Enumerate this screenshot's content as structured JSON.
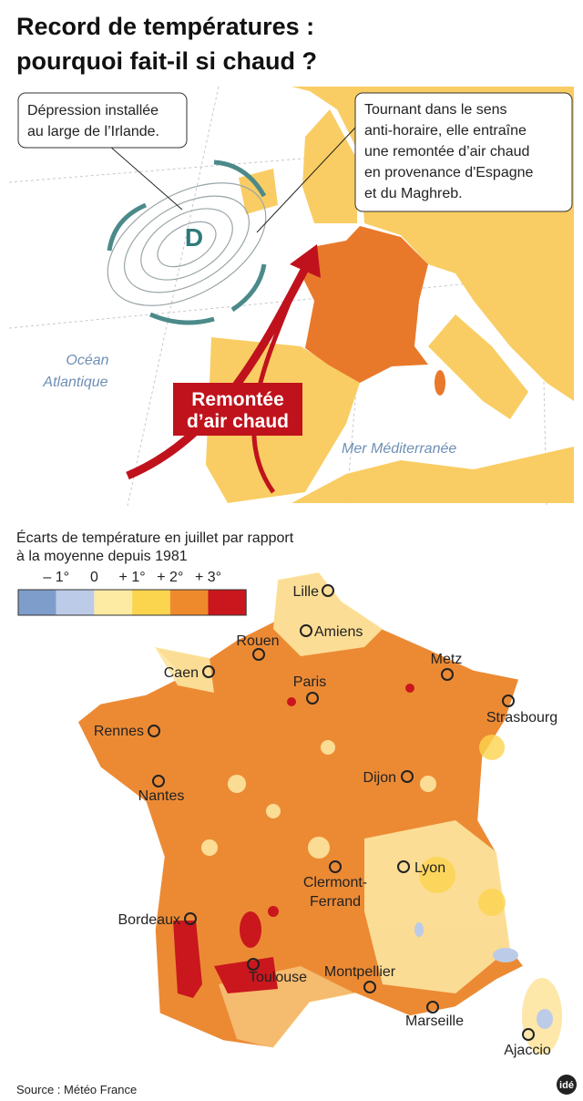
{
  "header": {
    "title": [
      "Record de températures :",
      "pourquoi fait-il si chaud ?"
    ]
  },
  "map_europe": {
    "callout_left": [
      "Dépression installée",
      "au large de l’Irlande."
    ],
    "callout_right": [
      "Tournant dans le sens",
      "anti-horaire, elle entraîne",
      "une remontée d’air chaud",
      "en provenance d'Espagne",
      "et du Maghreb."
    ],
    "depression_label": "D",
    "ocean_label": [
      "Océan",
      "Atlantique"
    ],
    "arrow_label": [
      "Remontée",
      "d’air chaud"
    ],
    "sea_label": "Mer Méditerranée"
  },
  "legend": {
    "title": [
      "Écarts de température en juillet par rapport",
      "à la moyenne depuis 1981"
    ],
    "labels": [
      "– 1°",
      "0",
      "+ 1°",
      "+ 2°",
      "+ 3°"
    ],
    "colors": [
      "#7f9dca",
      "#bccbe7",
      "#fdeaa3",
      "#fcd54e",
      "#ef8a2c",
      "#c9171d"
    ]
  },
  "map_france": {
    "cities": [
      "Lille",
      "Amiens",
      "Rouen",
      "Metz",
      "Caen",
      "Paris",
      "Strasbourg",
      "Rennes",
      "Dijon",
      "Nantes",
      "Lyon",
      "Clermont-",
      "Ferrand",
      "Bordeaux",
      "Toulouse",
      "Montpellier",
      "Marseille",
      "Ajaccio"
    ]
  },
  "footer": {
    "source": "Source : Météo France",
    "logo": "idé"
  }
}
